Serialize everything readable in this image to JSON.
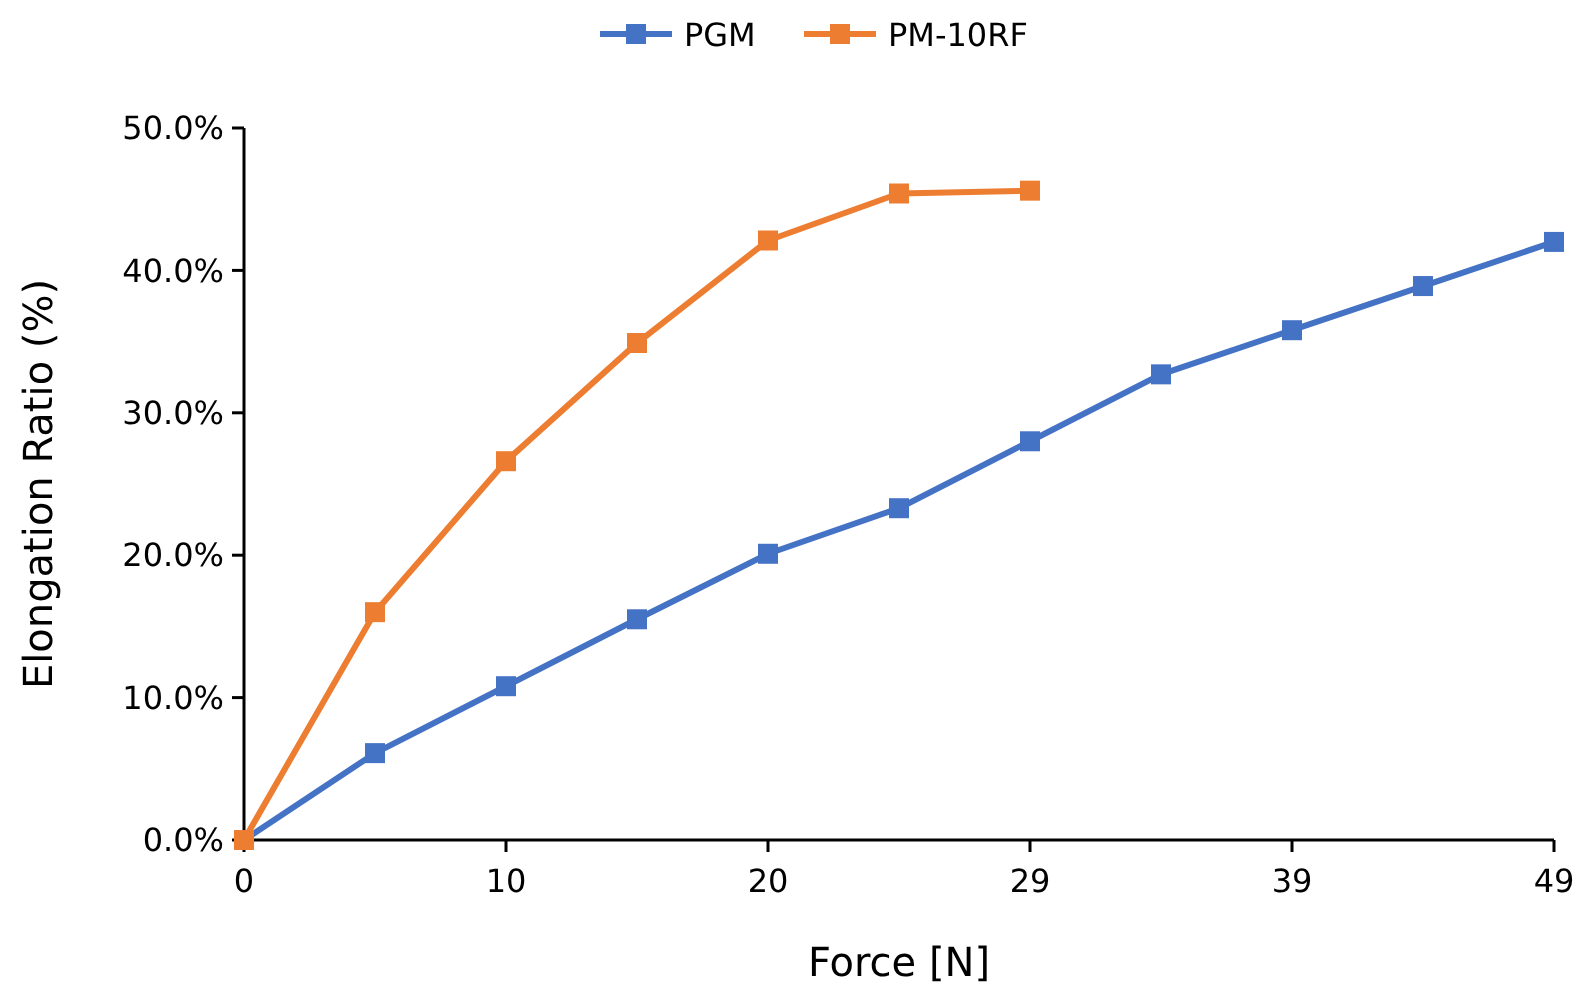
{
  "chart_data": {
    "type": "line",
    "xlabel": "Force [N]",
    "ylabel": "Elongation Ratio (%)",
    "categories": [
      "0",
      null,
      "10",
      null,
      "20",
      null,
      "29",
      null,
      "39",
      null,
      "49"
    ],
    "series": [
      {
        "name": "PGM",
        "color": "#4472c4",
        "values": [
          0,
          6.1,
          10.8,
          15.5,
          20.1,
          23.3,
          28.0,
          32.7,
          35.8,
          38.9,
          42.0
        ]
      },
      {
        "name": "PM-10RF",
        "color": "#ed7d31",
        "values": [
          0,
          16.0,
          26.6,
          34.9,
          42.1,
          45.4,
          45.6,
          null,
          null,
          null,
          null
        ]
      }
    ],
    "ylim": [
      0,
      50
    ],
    "yticks": [
      {
        "value": 0,
        "label": "0.0%"
      },
      {
        "value": 10,
        "label": "10.0%"
      },
      {
        "value": 20,
        "label": "20.0%"
      },
      {
        "value": 30,
        "label": "30.0%"
      },
      {
        "value": 40,
        "label": "40.0%"
      },
      {
        "value": 50,
        "label": "50.0%"
      }
    ],
    "legend": "top",
    "marker": "square",
    "line_style": "solid"
  }
}
